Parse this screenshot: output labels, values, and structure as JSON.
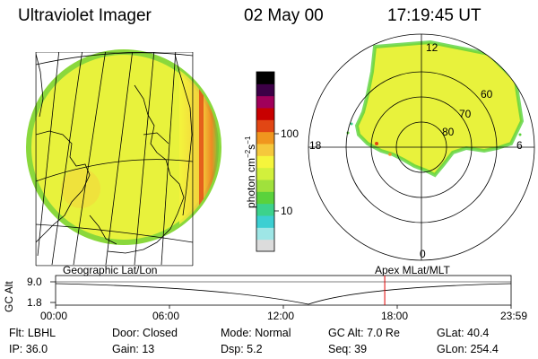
{
  "header": {
    "instrument": "Ultraviolet Imager",
    "date": "02 May 00",
    "time": "17:19:45 UT"
  },
  "colorbar": {
    "unit_label": "photon cm",
    "unit_exp1": "−2",
    "unit_mid": "s",
    "unit_exp2": "−1",
    "tick_high": "100",
    "tick_low": "10",
    "colors": [
      "#dcdcdc",
      "#9ee6e6",
      "#3ccfd2",
      "#3cd28c",
      "#5ad23c",
      "#a0e13c",
      "#d2f03c",
      "#f5f53c",
      "#f5c83c",
      "#f0961e",
      "#e14614",
      "#c80000",
      "#a0005a",
      "#3c0046",
      "#000000"
    ]
  },
  "polar_plot": {
    "mlt_labels": {
      "top": "12",
      "left": "18",
      "right": "6",
      "bottom": "0"
    },
    "lat_labels": [
      "60",
      "70",
      "80"
    ]
  },
  "timeline": {
    "left_label": "Geographic Lat/Lon",
    "right_label": "Apex MLat/MLT",
    "axis_title": "GC Alt",
    "y_ticks": [
      "9.0",
      "1.8"
    ],
    "x_ticks": [
      "00:00",
      "06:00",
      "12:00",
      "18:00",
      "23:59"
    ],
    "marker_time_hours": 17.33,
    "marker_color": "#e00000"
  },
  "info": {
    "flt": "Flt: LBHL",
    "ip": "IP: 36.0",
    "door": "Door: Closed",
    "gain": "Gain: 13",
    "mode": "Mode: Normal",
    "dsp": "Dsp:    5.2",
    "gc_alt": "GC Alt: 7.0 Re",
    "seq": "Seq: 39",
    "glat": "GLat:  40.4",
    "glon": "GLon: 254.4"
  }
}
